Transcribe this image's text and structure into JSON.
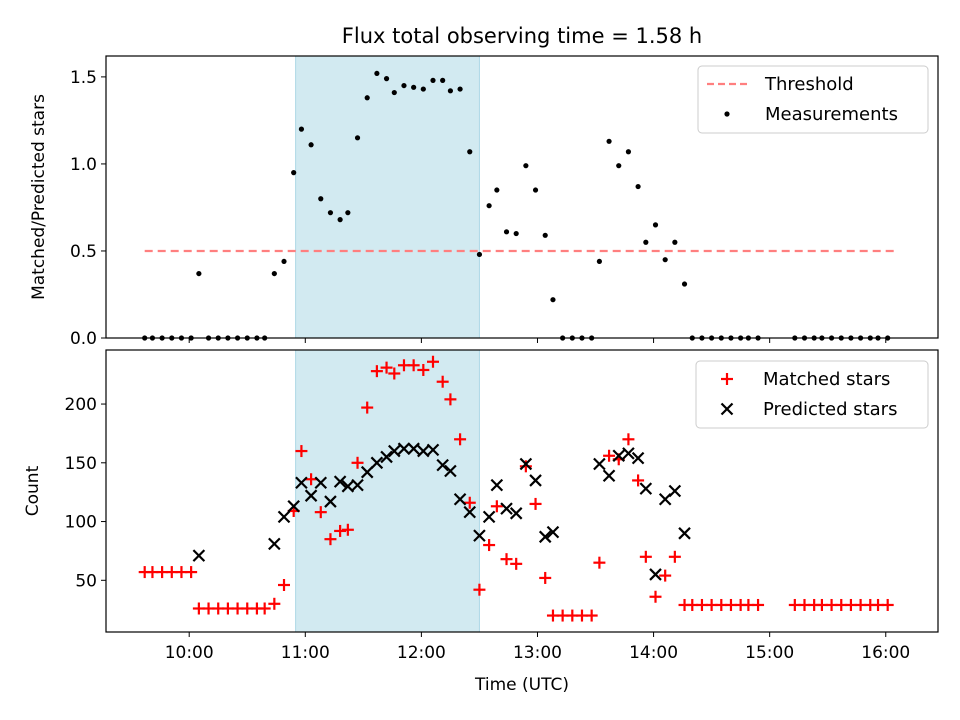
{
  "chart_data": {
    "title": "Flux total observing time = 1.58 h",
    "shaded_interval": [
      "10:55",
      "12:30"
    ],
    "shade_color": "#add8e6",
    "x_axis": {
      "label": "Time (UTC)",
      "range": [
        "09:17",
        "16:27"
      ],
      "ticks": [
        "10:00",
        "11:00",
        "12:00",
        "13:00",
        "14:00",
        "15:00",
        "16:00"
      ]
    },
    "panels": [
      {
        "type": "scatter",
        "ylabel": "Matched/Predicted stars",
        "ylim": [
          0,
          1.62
        ],
        "yticks": [
          "0.0",
          "0.5",
          "1.0",
          "1.5"
        ],
        "legend_position": "upper-right",
        "threshold": {
          "name": "Threshold",
          "value": 0.5,
          "x_range": [
            "09:37",
            "16:05"
          ],
          "color": "#ff7f7f"
        },
        "measurements": {
          "name": "Measurements",
          "color": "#000000",
          "points": [
            [
              "09:37",
              0
            ],
            [
              "09:41",
              0
            ],
            [
              "09:46",
              0
            ],
            [
              "09:51",
              0
            ],
            [
              "09:56",
              0
            ],
            [
              "10:01",
              0
            ],
            [
              "10:05",
              0.37
            ],
            [
              "10:10",
              0
            ],
            [
              "10:15",
              0
            ],
            [
              "10:20",
              0
            ],
            [
              "10:25",
              0
            ],
            [
              "10:30",
              0
            ],
            [
              "10:35",
              0
            ],
            [
              "10:39",
              0
            ],
            [
              "10:44",
              0.37
            ],
            [
              "10:49",
              0.44
            ],
            [
              "10:54",
              0.95
            ],
            [
              "10:58",
              1.2
            ],
            [
              "11:03",
              1.11
            ],
            [
              "11:08",
              0.8
            ],
            [
              "11:13",
              0.72
            ],
            [
              "11:18",
              0.68
            ],
            [
              "11:22",
              0.72
            ],
            [
              "11:27",
              1.15
            ],
            [
              "11:32",
              1.38
            ],
            [
              "11:37",
              1.52
            ],
            [
              "11:42",
              1.49
            ],
            [
              "11:46",
              1.41
            ],
            [
              "11:51",
              1.45
            ],
            [
              "11:56",
              1.44
            ],
            [
              "12:01",
              1.43
            ],
            [
              "12:06",
              1.48
            ],
            [
              "12:11",
              1.48
            ],
            [
              "12:15",
              1.42
            ],
            [
              "12:20",
              1.43
            ],
            [
              "12:25",
              1.07
            ],
            [
              "12:30",
              0.48
            ],
            [
              "12:35",
              0.76
            ],
            [
              "12:39",
              0.85
            ],
            [
              "12:44",
              0.61
            ],
            [
              "12:49",
              0.6
            ],
            [
              "12:54",
              0.99
            ],
            [
              "12:59",
              0.85
            ],
            [
              "13:04",
              0.59
            ],
            [
              "13:08",
              0.22
            ],
            [
              "13:13",
              0
            ],
            [
              "13:18",
              0
            ],
            [
              "13:23",
              0
            ],
            [
              "13:28",
              0
            ],
            [
              "13:32",
              0.44
            ],
            [
              "13:37",
              1.13
            ],
            [
              "13:42",
              0.99
            ],
            [
              "13:47",
              1.07
            ],
            [
              "13:52",
              0.87
            ],
            [
              "13:56",
              0.55
            ],
            [
              "14:01",
              0.65
            ],
            [
              "14:06",
              0.45
            ],
            [
              "14:11",
              0.55
            ],
            [
              "14:16",
              0.31
            ],
            [
              "14:20",
              0
            ],
            [
              "14:25",
              0
            ],
            [
              "14:30",
              0
            ],
            [
              "14:35",
              0
            ],
            [
              "14:40",
              0
            ],
            [
              "14:45",
              0
            ],
            [
              "14:49",
              0
            ],
            [
              "14:54",
              0
            ],
            [
              "15:13",
              0
            ],
            [
              "15:18",
              0
            ],
            [
              "15:23",
              0
            ],
            [
              "15:27",
              0
            ],
            [
              "15:32",
              0
            ],
            [
              "15:37",
              0
            ],
            [
              "15:42",
              0
            ],
            [
              "15:47",
              0
            ],
            [
              "15:52",
              0
            ],
            [
              "15:56",
              0
            ],
            [
              "16:01",
              0
            ]
          ]
        }
      },
      {
        "type": "scatter",
        "ylabel": "Count",
        "ylim": [
          6,
          246
        ],
        "yticks": [
          "50",
          "100",
          "150",
          "200"
        ],
        "legend_position": "upper-right",
        "series": [
          {
            "name": "Matched stars",
            "marker": "+",
            "color": "#ff0000",
            "points": [
              [
                "09:37",
                57
              ],
              [
                "09:41",
                57
              ],
              [
                "09:46",
                57
              ],
              [
                "09:51",
                57
              ],
              [
                "09:56",
                57
              ],
              [
                "10:01",
                57
              ],
              [
                "10:05",
                26
              ],
              [
                "10:10",
                26
              ],
              [
                "10:15",
                26
              ],
              [
                "10:20",
                26
              ],
              [
                "10:25",
                26
              ],
              [
                "10:30",
                26
              ],
              [
                "10:35",
                26
              ],
              [
                "10:39",
                26
              ],
              [
                "10:44",
                30
              ],
              [
                "10:49",
                46
              ],
              [
                "10:54",
                109
              ],
              [
                "10:58",
                160
              ],
              [
                "11:03",
                136
              ],
              [
                "11:08",
                108
              ],
              [
                "11:13",
                85
              ],
              [
                "11:18",
                92
              ],
              [
                "11:22",
                93
              ],
              [
                "11:27",
                150
              ],
              [
                "11:32",
                197
              ],
              [
                "11:37",
                228
              ],
              [
                "11:42",
                231
              ],
              [
                "11:46",
                226
              ],
              [
                "11:51",
                233
              ],
              [
                "11:56",
                233
              ],
              [
                "12:01",
                229
              ],
              [
                "12:06",
                236
              ],
              [
                "12:11",
                219
              ],
              [
                "12:15",
                204
              ],
              [
                "12:20",
                170
              ],
              [
                "12:25",
                116
              ],
              [
                "12:30",
                42
              ],
              [
                "12:35",
                80
              ],
              [
                "12:39",
                113
              ],
              [
                "12:44",
                68
              ],
              [
                "12:49",
                64
              ],
              [
                "12:54",
                147
              ],
              [
                "12:59",
                115
              ],
              [
                "13:04",
                52
              ],
              [
                "13:08",
                20
              ],
              [
                "13:13",
                20
              ],
              [
                "13:18",
                20
              ],
              [
                "13:23",
                20
              ],
              [
                "13:28",
                20
              ],
              [
                "13:32",
                65
              ],
              [
                "13:37",
                156
              ],
              [
                "13:42",
                153
              ],
              [
                "13:47",
                170
              ],
              [
                "13:52",
                135
              ],
              [
                "13:56",
                70
              ],
              [
                "14:01",
                36
              ],
              [
                "14:06",
                54
              ],
              [
                "14:11",
                70
              ],
              [
                "14:16",
                29
              ],
              [
                "14:20",
                29
              ],
              [
                "14:25",
                29
              ],
              [
                "14:30",
                29
              ],
              [
                "14:35",
                29
              ],
              [
                "14:40",
                29
              ],
              [
                "14:45",
                29
              ],
              [
                "14:49",
                29
              ],
              [
                "14:54",
                29
              ],
              [
                "15:13",
                29
              ],
              [
                "15:18",
                29
              ],
              [
                "15:23",
                29
              ],
              [
                "15:27",
                29
              ],
              [
                "15:32",
                29
              ],
              [
                "15:37",
                29
              ],
              [
                "15:42",
                29
              ],
              [
                "15:47",
                29
              ],
              [
                "15:52",
                29
              ],
              [
                "15:56",
                29
              ],
              [
                "16:01",
                29
              ]
            ]
          },
          {
            "name": "Predicted stars",
            "marker": "x",
            "color": "#000000",
            "points": [
              [
                "10:05",
                71
              ],
              [
                "10:44",
                81
              ],
              [
                "10:49",
                104
              ],
              [
                "10:54",
                113
              ],
              [
                "10:58",
                133
              ],
              [
                "11:03",
                122
              ],
              [
                "11:08",
                133
              ],
              [
                "11:13",
                117
              ],
              [
                "11:18",
                134
              ],
              [
                "11:22",
                130
              ],
              [
                "11:27",
                131
              ],
              [
                "11:32",
                142
              ],
              [
                "11:37",
                150
              ],
              [
                "11:42",
                155
              ],
              [
                "11:46",
                160
              ],
              [
                "11:51",
                162
              ],
              [
                "11:56",
                162
              ],
              [
                "12:01",
                160
              ],
              [
                "12:06",
                161
              ],
              [
                "12:11",
                148
              ],
              [
                "12:15",
                143
              ],
              [
                "12:20",
                119
              ],
              [
                "12:25",
                108
              ],
              [
                "12:30",
                88
              ],
              [
                "12:35",
                104
              ],
              [
                "12:39",
                131
              ],
              [
                "12:44",
                111
              ],
              [
                "12:49",
                107
              ],
              [
                "12:54",
                149
              ],
              [
                "12:59",
                135
              ],
              [
                "13:04",
                87
              ],
              [
                "13:08",
                91
              ],
              [
                "13:32",
                149
              ],
              [
                "13:37",
                139
              ],
              [
                "13:42",
                156
              ],
              [
                "13:47",
                158
              ],
              [
                "13:52",
                154
              ],
              [
                "13:56",
                128
              ],
              [
                "14:01",
                55
              ],
              [
                "14:06",
                119
              ],
              [
                "14:11",
                126
              ],
              [
                "14:16",
                90
              ]
            ]
          }
        ]
      }
    ]
  }
}
